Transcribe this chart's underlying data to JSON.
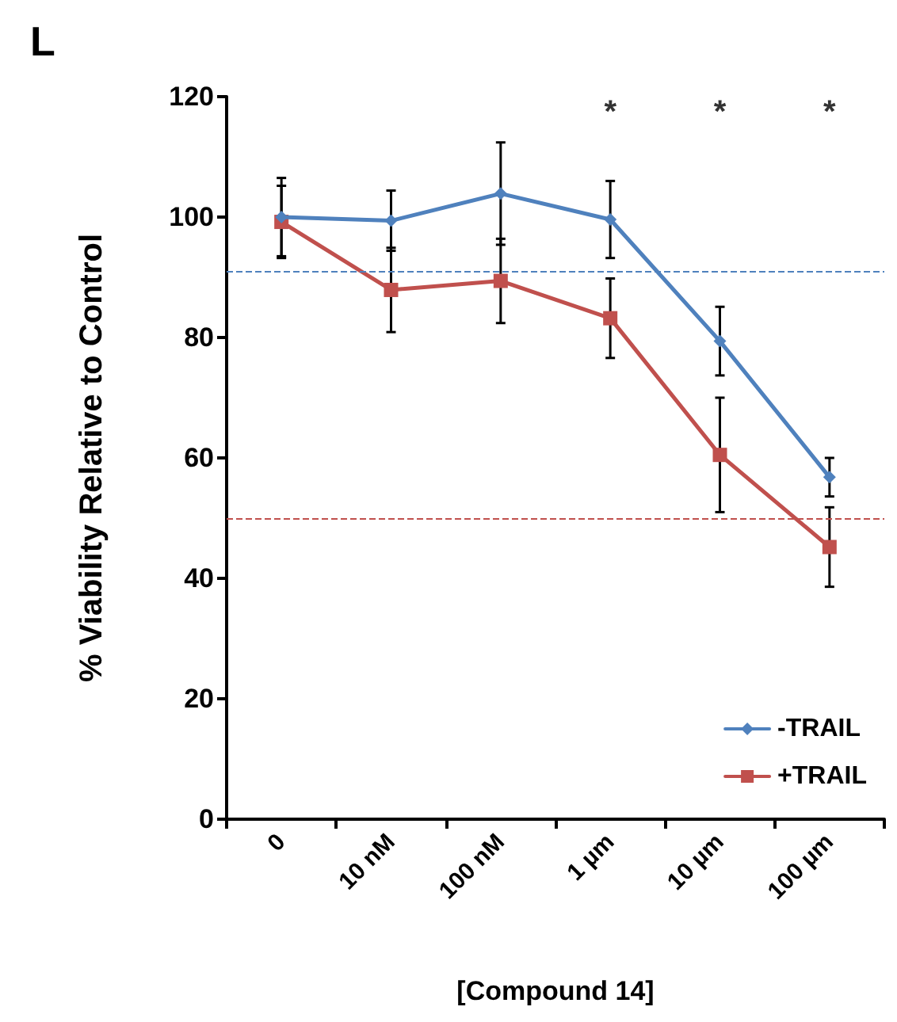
{
  "chart_data": {
    "type": "line",
    "title": "L",
    "xlabel": "[Compound 14]",
    "ylabel": "% Viability Relative to Control",
    "categories": [
      "0",
      "10 nM",
      "100 nM",
      "1 µm",
      "10 µm",
      "100 µm"
    ],
    "series": [
      {
        "name": "-TRAIL",
        "color": "#4f81bd",
        "marker": "diamond",
        "values": [
          100,
          99.4,
          103.9,
          99.6,
          79.4,
          56.8
        ],
        "errors": [
          6.5,
          5,
          8.5,
          6.4,
          5.7,
          3.2
        ]
      },
      {
        "name": "+TRAIL",
        "color": "#c0504d",
        "marker": "square",
        "values": [
          99.2,
          87.9,
          89.4,
          83.2,
          60.5,
          45.2
        ],
        "errors": [
          6,
          7,
          7,
          6.6,
          9.5,
          6.6
        ]
      }
    ],
    "ylim": [
      0,
      120
    ],
    "yticks": [
      0,
      20,
      40,
      60,
      80,
      100,
      120
    ],
    "grid": false,
    "legend": "bottom right",
    "ref_lines": [
      {
        "axis": "y",
        "value": 91,
        "color": "#4f81bd",
        "line_style": "dashed"
      },
      {
        "axis": "y",
        "value": 50,
        "color": "#c0504d",
        "line_style": "dashed"
      }
    ],
    "annotations": [
      "*",
      "*",
      "*"
    ]
  }
}
